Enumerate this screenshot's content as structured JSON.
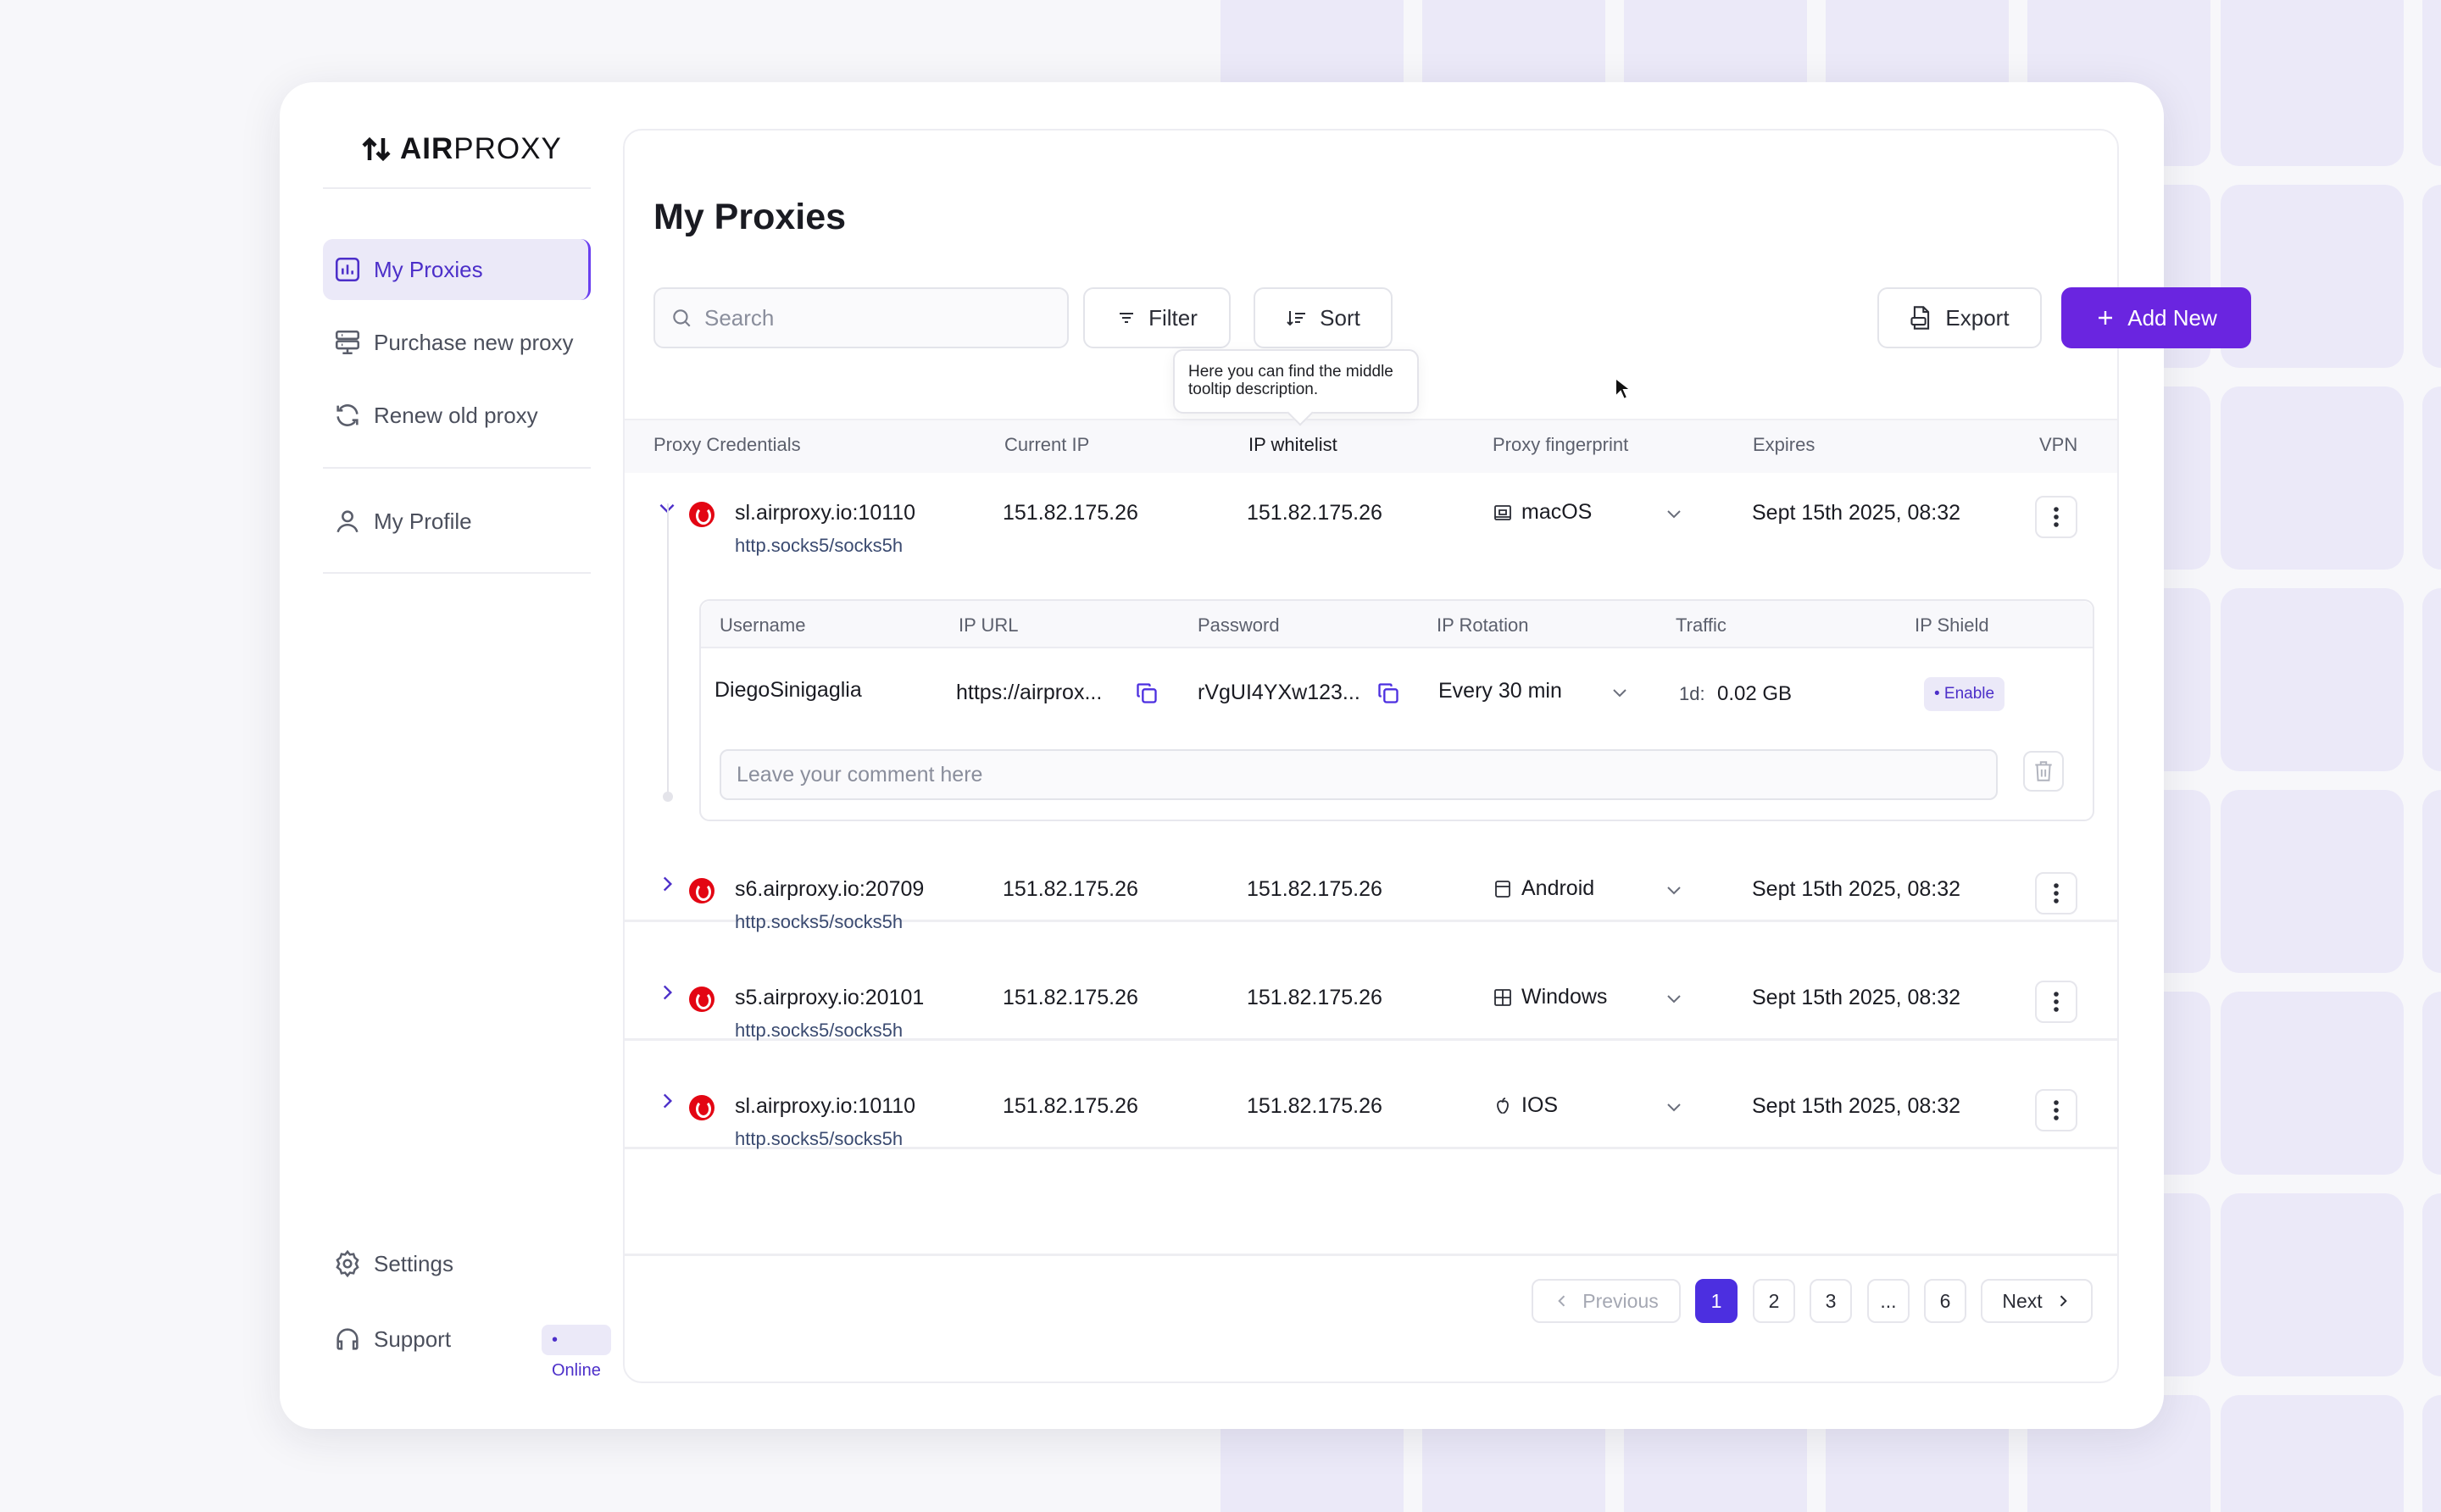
{
  "brand": {
    "logo_bold": "AIR",
    "logo_light": "PROXY"
  },
  "sidebar": {
    "items": [
      {
        "label": "My Proxies",
        "icon": "chart-icon",
        "active": true
      },
      {
        "label": "Purchase new proxy",
        "icon": "server-icon"
      },
      {
        "label": "Renew old proxy",
        "icon": "refresh-icon"
      },
      {
        "label": "My Profile",
        "icon": "user-icon"
      }
    ],
    "bottom": [
      {
        "label": "Settings",
        "icon": "gear-icon"
      },
      {
        "label": "Support",
        "icon": "headset-icon",
        "badge": "• Online"
      }
    ]
  },
  "main": {
    "title": "My Proxies",
    "search_placeholder": "Search",
    "filter_label": "Filter",
    "sort_label": "Sort",
    "export_label": "Export",
    "add_label": "Add New",
    "tooltip": "Here you can find the middle tooltip description.",
    "columns": [
      "Proxy Credentials",
      "Current IP",
      "IP whitelist",
      "Proxy fingerprint",
      "Expires",
      "VPN"
    ],
    "rows": [
      {
        "host": "sl.airproxy.io:10110",
        "protocol": "http.socks5/socks5h",
        "current_ip": "151.82.175.26",
        "whitelist": "151.82.175.26",
        "os": "macOS",
        "os_icon": "laptop-icon",
        "expires": "Sept 15th 2025, 08:32",
        "expanded": true
      },
      {
        "host": "s6.airproxy.io:20709",
        "protocol": "http.socks5/socks5h",
        "current_ip": "151.82.175.26",
        "whitelist": "151.82.175.26",
        "os": "Android",
        "os_icon": "android-icon",
        "expires": "Sept 15th 2025, 08:32"
      },
      {
        "host": "s5.airproxy.io:20101",
        "protocol": "http.socks5/socks5h",
        "current_ip": "151.82.175.26",
        "whitelist": "151.82.175.26",
        "os": "Windows",
        "os_icon": "windows-icon",
        "expires": "Sept 15th 2025, 08:32"
      },
      {
        "host": "sl.airproxy.io:10110",
        "protocol": "http.socks5/socks5h",
        "current_ip": "151.82.175.26",
        "whitelist": "151.82.175.26",
        "os": "IOS",
        "os_icon": "apple-icon",
        "expires": "Sept 15th 2025, 08:32"
      }
    ],
    "detail": {
      "columns": [
        "Username",
        "IP URL",
        "Password",
        "IP Rotation",
        "Traffic",
        "IP Shield"
      ],
      "username": "DiegoSinigaglia",
      "ip_url": "https://airprox...",
      "password": "rVgUI4YXw123...",
      "rotation": "Every 30 min",
      "traffic_period": "1d:",
      "traffic_value": "0.02 GB",
      "shield": "• Enable",
      "comment_placeholder": "Leave your comment here"
    },
    "pagination": {
      "previous": "Previous",
      "next": "Next",
      "pages": [
        "1",
        "2",
        "3",
        "...",
        "6"
      ],
      "current": "1"
    }
  },
  "colors": {
    "accent": "#6a25e0",
    "accent_light": "#ebe9f8",
    "vodafone": "#e30613"
  }
}
